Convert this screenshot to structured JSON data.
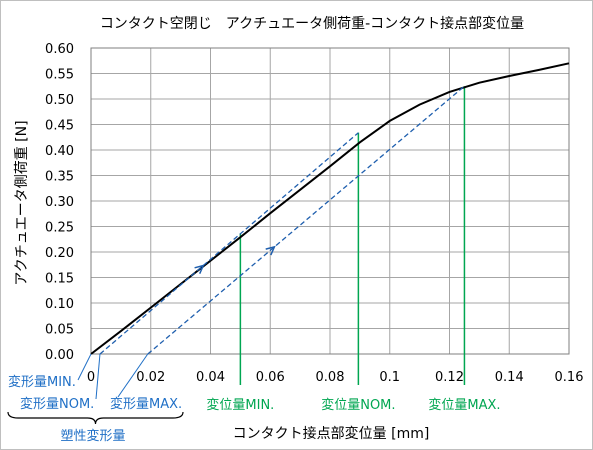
{
  "chart_data": {
    "type": "line",
    "title": "コンタクト空閉じ　アクチュエータ側荷重-コンタクト接点部変位量",
    "xlabel": "コンタクト接点部変位量 [mm]",
    "ylabel": "アクチュエータ側荷重 [N]",
    "xlim": [
      0,
      0.16
    ],
    "ylim": [
      0,
      0.6
    ],
    "x_ticks": [
      "0",
      "0.02",
      "0.04",
      "0.06",
      "0.08",
      "0.1",
      "0.12",
      "0.14",
      "0.16"
    ],
    "y_ticks": [
      "0.00",
      "0.05",
      "0.10",
      "0.15",
      "0.20",
      "0.25",
      "0.30",
      "0.35",
      "0.40",
      "0.45",
      "0.50",
      "0.55",
      "0.60"
    ],
    "grid": true,
    "series": [
      {
        "color": "#000000",
        "style": "solid",
        "x": [
          0,
          0.01,
          0.02,
          0.03,
          0.04,
          0.05,
          0.06,
          0.07,
          0.08,
          0.09,
          0.1,
          0.11,
          0.12,
          0.13,
          0.14,
          0.15,
          0.16
        ],
        "y": [
          0,
          0.045,
          0.091,
          0.137,
          0.183,
          0.229,
          0.276,
          0.322,
          0.368,
          0.415,
          0.457,
          0.489,
          0.514,
          0.532,
          0.545,
          0.557,
          0.57
        ]
      },
      {
        "color": "#1f5fae",
        "style": "dashed",
        "x": [
          0.003,
          0.0895
        ],
        "y": [
          0,
          0.434
        ]
      },
      {
        "color": "#1f5fae",
        "style": "dashed",
        "x": [
          0.019,
          0.125
        ],
        "y": [
          0,
          0.525
        ]
      }
    ],
    "markers": [
      {
        "label": "変位量MIN.",
        "x": 0.05,
        "y": 0.236
      },
      {
        "label": "変位量NOM.",
        "x": 0.0895,
        "y": 0.434
      },
      {
        "label": "変位量MAX.",
        "x": 0.125,
        "y": 0.525
      }
    ],
    "deformation_labels": [
      {
        "label": "変形量MIN.",
        "x": 0.0
      },
      {
        "label": "変形量NOM.",
        "x": 0.003
      },
      {
        "label": "変形量MAX.",
        "x": 0.019
      }
    ],
    "bracket_label": "塑性変形量",
    "colors": {
      "curve": "#000000",
      "dashed": "#1f5fae",
      "marker": "#00a651",
      "label_blue": "#1f6fc6",
      "grid": "#a6a6a6"
    }
  }
}
